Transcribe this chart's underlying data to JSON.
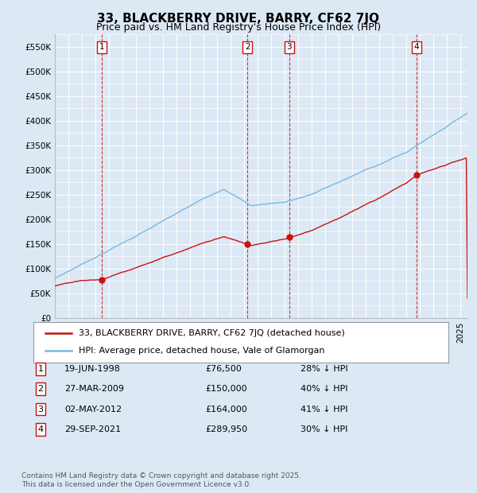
{
  "title": "33, BLACKBERRY DRIVE, BARRY, CF62 7JQ",
  "subtitle": "Price paid vs. HM Land Registry's House Price Index (HPI)",
  "ylabel_ticks": [
    "£0",
    "£50K",
    "£100K",
    "£150K",
    "£200K",
    "£250K",
    "£300K",
    "£350K",
    "£400K",
    "£450K",
    "£500K",
    "£550K"
  ],
  "ylabel_values": [
    0,
    50000,
    100000,
    150000,
    200000,
    250000,
    300000,
    350000,
    400000,
    450000,
    500000,
    550000
  ],
  "ylim": [
    0,
    575000
  ],
  "xlim_start": 1995.0,
  "xlim_end": 2025.5,
  "hpi_color": "#7ab8e0",
  "price_color": "#cc1111",
  "background_color": "#dce9f5",
  "plot_bg_color": "#dce9f5",
  "grid_color": "#ffffff",
  "transactions": [
    {
      "num": 1,
      "date": "19-JUN-1998",
      "price": 76500,
      "year": 1998.46,
      "pct": "28% ↓ HPI"
    },
    {
      "num": 2,
      "date": "27-MAR-2009",
      "price": 150000,
      "year": 2009.23,
      "pct": "40% ↓ HPI"
    },
    {
      "num": 3,
      "date": "02-MAY-2012",
      "price": 164000,
      "year": 2012.33,
      "pct": "41% ↓ HPI"
    },
    {
      "num": 4,
      "date": "29-SEP-2021",
      "price": 289950,
      "year": 2021.74,
      "pct": "30% ↓ HPI"
    }
  ],
  "legend_entries": [
    "33, BLACKBERRY DRIVE, BARRY, CF62 7JQ (detached house)",
    "HPI: Average price, detached house, Vale of Glamorgan"
  ],
  "footer": "Contains HM Land Registry data © Crown copyright and database right 2025.\nThis data is licensed under the Open Government Licence v3.0.",
  "title_fontsize": 11,
  "subtitle_fontsize": 9,
  "tick_fontsize": 7.5,
  "legend_fontsize": 8,
  "table_fontsize": 8,
  "footer_fontsize": 6.5
}
